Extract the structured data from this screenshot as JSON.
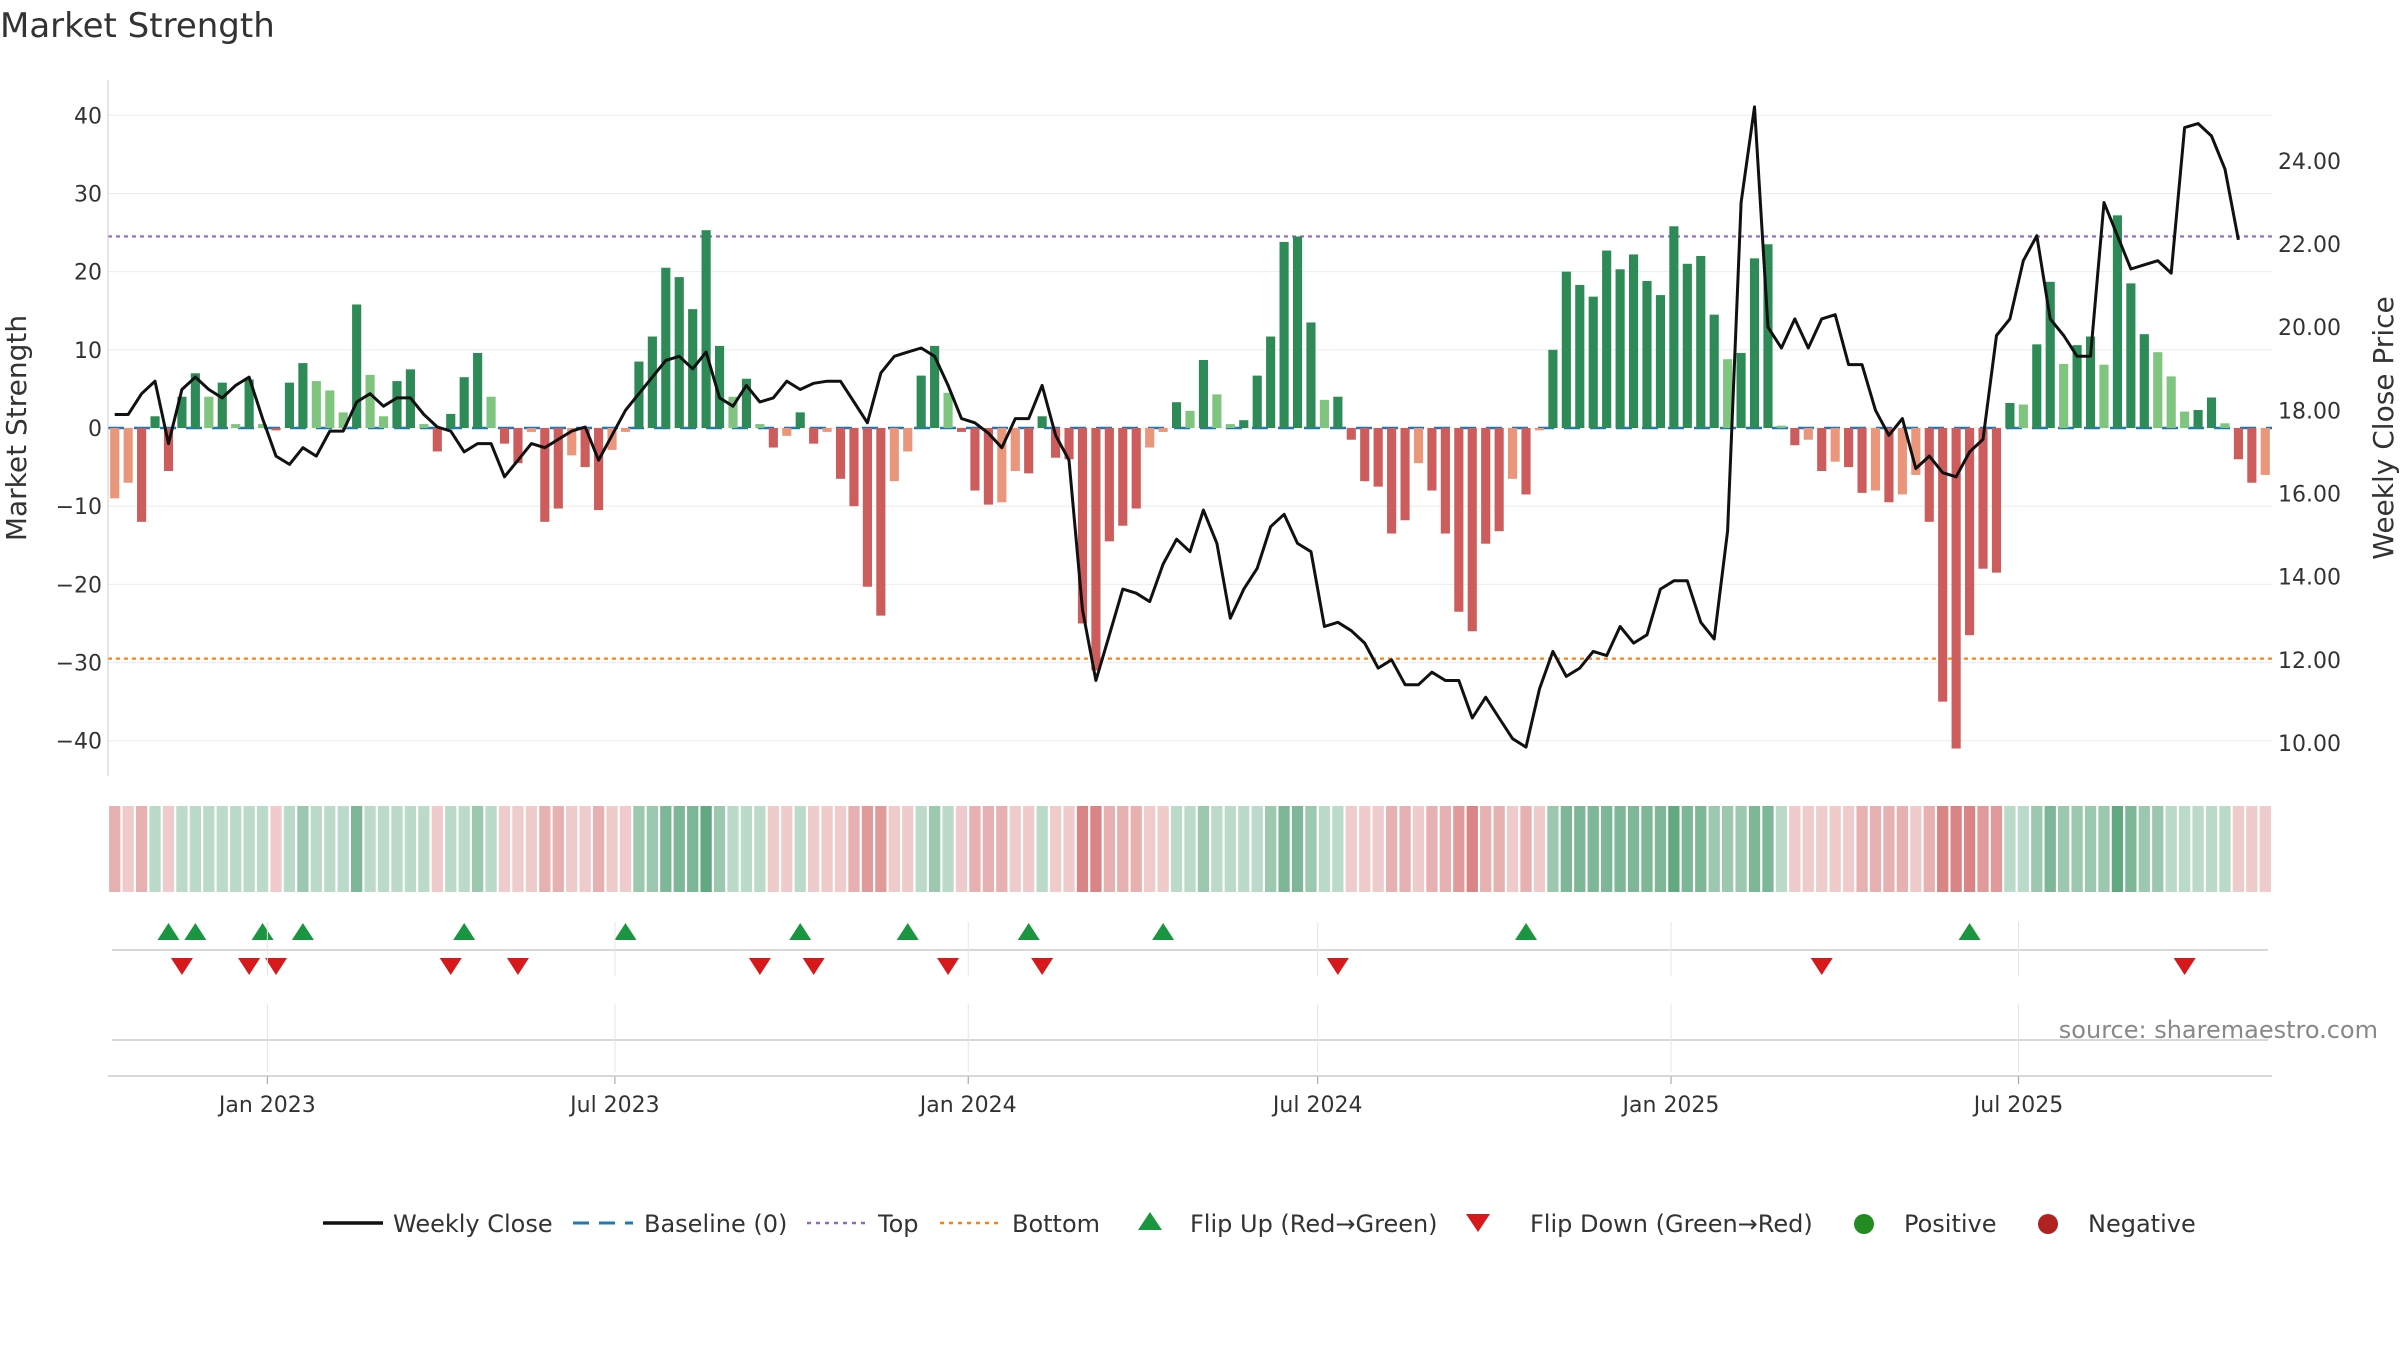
{
  "chart_data": {
    "type": "bar",
    "title": "Market Strength",
    "ylabel_left": "Market Strength",
    "ylabel_right": "Weekly Close Price",
    "left_axis": {
      "range": [
        -44,
        44
      ],
      "ticks": [
        40,
        30,
        20,
        10,
        0,
        -10,
        -20,
        -30,
        -40
      ],
      "tick_labels": [
        "40",
        "30",
        "20",
        "10",
        "0",
        "−10",
        "−20",
        "−30",
        "−40"
      ]
    },
    "right_axis": {
      "range": [
        9.3,
        25.85
      ],
      "ticks": [
        10,
        12,
        14,
        16,
        18,
        20,
        22,
        24
      ],
      "tick_labels": [
        "10.00",
        "12.00",
        "14.00",
        "16.00",
        "18.00",
        "20.00",
        "22.00",
        "24.00"
      ]
    },
    "x_axis": {
      "start_date": "2022-10-10",
      "week_count": 156,
      "ticks": [
        {
          "date": "2023-01-01",
          "label": "Jan 2023"
        },
        {
          "date": "2023-07-01",
          "label": "Jul 2023"
        },
        {
          "date": "2024-01-01",
          "label": "Jan 2024"
        },
        {
          "date": "2024-07-01",
          "label": "Jul 2024"
        },
        {
          "date": "2025-01-01",
          "label": "Jan 2025"
        },
        {
          "date": "2025-07-01",
          "label": "Jul 2025"
        }
      ]
    },
    "reference_lines": {
      "baseline": 0,
      "top": 24.5,
      "bottom": -29.5
    },
    "colors": {
      "pos_dark": "#2e8b57",
      "pos_light": "#7fc47f",
      "neg_dark": "#cd5c5c",
      "neg_light": "#e9967a",
      "price_line": "#111111",
      "baseline": "#1f77b4",
      "top": "#9467bd",
      "bottom": "#ff7f0e",
      "flip_up": "#1a9641",
      "flip_down": "#d7191c",
      "positive": "#228b22",
      "negative": "#b22222"
    },
    "series": [
      {
        "name": "Market Strength",
        "values": [
          -9,
          -7,
          -12,
          1.5,
          -5.5,
          4,
          7,
          4,
          5.8,
          0.5,
          6.2,
          0.5,
          -0.3,
          5.8,
          8.3,
          6,
          4.8,
          2,
          15.8,
          6.8,
          1.5,
          6,
          7.5,
          0.5,
          -3,
          1.8,
          6.5,
          9.6,
          4,
          -2,
          -4.5,
          -0.5,
          -12,
          -10.3,
          -3.5,
          -5,
          -10.5,
          -2.8,
          -0.5,
          8.5,
          11.7,
          20.5,
          19.3,
          15.2,
          25.3,
          10.5,
          4,
          6.3,
          0.5,
          -2.5,
          -1,
          2,
          -2,
          -0.5,
          -6.5,
          -10,
          -20.3,
          -24,
          -6.8,
          -3,
          6.7,
          10.5,
          4.5,
          -0.5,
          -8,
          -9.8,
          -9.5,
          -5.5,
          -5.8,
          1.5,
          -3.8,
          -4,
          -25,
          -31,
          -14.5,
          -12.5,
          -10.3,
          -2.5,
          -0.5,
          3.3,
          2.2,
          8.7,
          4.3,
          0.5,
          1,
          6.7,
          11.7,
          23.8,
          24.5,
          13.5,
          3.6,
          4,
          -1.5,
          -6.8,
          -7.5,
          -13.5,
          -11.8,
          -4.5,
          -8,
          -13.5,
          -23.5,
          -26,
          -14.8,
          -13.2,
          -6.5,
          -8.5,
          -0.3,
          10,
          20,
          18.3,
          16.8,
          22.7,
          20.3,
          22.2,
          18.8,
          17,
          25.8,
          21,
          22,
          14.5,
          8.8,
          9.6,
          21.7,
          23.5,
          0.3,
          -2.2,
          -1.5,
          -5.5,
          -4.3,
          -5,
          -8.3,
          -8,
          -9.5,
          -8.5,
          -6,
          -12,
          -35,
          -41,
          -26.5,
          -18,
          -18.5,
          3.2,
          3,
          10.7,
          18.7,
          8.2,
          10.6,
          11.7,
          8.1,
          27.2,
          18.5,
          12,
          9.7,
          6.6,
          2.1,
          2.3,
          3.9,
          0.6,
          -4,
          -7,
          -6
        ]
      },
      {
        "name": "Weekly Close",
        "values": [
          17.9,
          17.9,
          18.4,
          18.7,
          17.2,
          18.5,
          18.8,
          18.5,
          18.3,
          18.6,
          18.8,
          17.8,
          16.9,
          16.7,
          17.1,
          16.9,
          17.5,
          17.5,
          18.2,
          18.4,
          18.1,
          18.3,
          18.3,
          17.9,
          17.6,
          17.5,
          17.0,
          17.2,
          17.2,
          16.4,
          16.8,
          17.2,
          17.1,
          17.3,
          17.5,
          17.6,
          16.8,
          17.4,
          18.0,
          18.4,
          18.8,
          19.2,
          19.3,
          19.0,
          19.4,
          18.3,
          18.1,
          18.6,
          18.2,
          18.3,
          18.7,
          18.5,
          18.65,
          18.7,
          18.7,
          18.2,
          17.7,
          18.9,
          19.3,
          19.4,
          19.5,
          19.3,
          18.6,
          17.8,
          17.7,
          17.45,
          17.1,
          17.8,
          17.8,
          18.6,
          17.4,
          16.8,
          13.2,
          11.5,
          12.6,
          13.7,
          13.6,
          13.4,
          14.3,
          14.9,
          14.6,
          15.6,
          14.8,
          13.0,
          13.7,
          14.2,
          15.2,
          15.5,
          14.8,
          14.6,
          12.8,
          12.9,
          12.7,
          12.4,
          11.8,
          12.0,
          11.4,
          11.4,
          11.7,
          11.5,
          11.5,
          10.6,
          11.1,
          10.6,
          10.1,
          9.9,
          11.3,
          12.2,
          11.6,
          11.8,
          12.2,
          12.1,
          12.8,
          12.4,
          12.6,
          13.7,
          13.9,
          13.9,
          12.9,
          12.5,
          15.1,
          23.0,
          25.3,
          20.0,
          19.5,
          20.2,
          19.5,
          20.2,
          20.3,
          19.1,
          19.1,
          18.0,
          17.4,
          17.8,
          16.6,
          16.9,
          16.5,
          16.4,
          17.0,
          17.3,
          19.8,
          20.2,
          21.6,
          22.2,
          20.2,
          19.8,
          19.3,
          19.3,
          23.0,
          22.2,
          21.4,
          21.5,
          21.6,
          21.3,
          24.8,
          24.9,
          24.6,
          23.8,
          22.1
        ]
      }
    ],
    "flip_up_indices": [
      4,
      6,
      11,
      14,
      26,
      38,
      51,
      59,
      68,
      78,
      105,
      138
    ],
    "flip_down_indices": [
      5,
      10,
      12,
      25,
      30,
      48,
      52,
      62,
      69,
      91,
      127,
      154
    ],
    "legend": [
      "Weekly Close",
      "Baseline (0)",
      "Top",
      "Bottom",
      "Flip Up (Red→Green)",
      "Flip Down (Green→Red)",
      "Positive",
      "Negative"
    ],
    "legend_placement": "bottom",
    "source": "source: sharemaestro.com"
  }
}
